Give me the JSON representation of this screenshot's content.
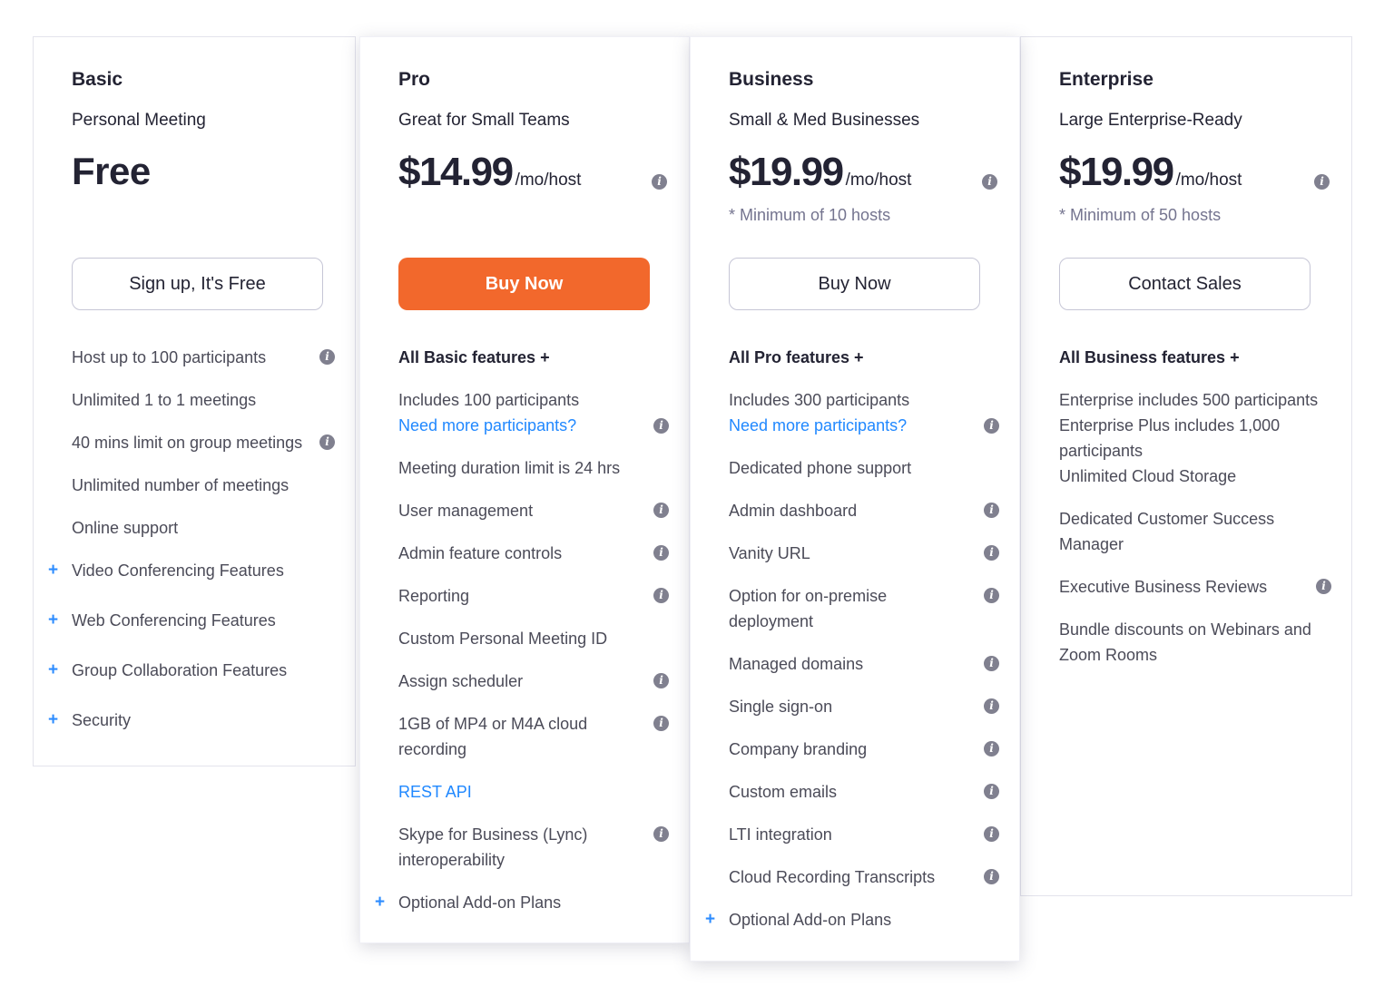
{
  "colors": {
    "accent_orange": "#F2682C",
    "link_blue": "#2088FF",
    "plus_blue": "#2D8CFF",
    "info_icon_gray": "#80808F",
    "heading_navy": "#232333",
    "note_gray": "#74748F"
  },
  "icons": {
    "info_glyph": "i",
    "plus_glyph": "+"
  },
  "plans": [
    {
      "name": "Basic",
      "tagline": "Personal Meeting",
      "price": {
        "display": "Free"
      },
      "button": {
        "label": "Sign up, It's Free",
        "style": "outline"
      },
      "features": [
        {
          "text": "Host up to 100 participants",
          "info": true
        },
        {
          "text": "Unlimited 1 to 1 meetings"
        },
        {
          "text": "40 mins limit on group meetings",
          "info": true
        },
        {
          "text": "Unlimited number of meetings"
        },
        {
          "text": "Online support"
        },
        {
          "text": "Video Conferencing Features",
          "expand": true
        },
        {
          "text": "Web Conferencing Features",
          "expand": true
        },
        {
          "text": "Group Collaboration Features",
          "expand": true
        },
        {
          "text": "Security",
          "expand": true
        }
      ]
    },
    {
      "name": "Pro",
      "tagline": "Great for Small Teams",
      "price": {
        "amount": "$14.99",
        "unit": "/mo/host",
        "info": true
      },
      "button": {
        "label": "Buy Now",
        "style": "solid"
      },
      "features": [
        {
          "text": "All Basic features +",
          "bold": true
        },
        {
          "text": "Includes 100 participants",
          "link": "Need more participants?",
          "info": true
        },
        {
          "text": "Meeting duration limit is 24 hrs"
        },
        {
          "text": "User management",
          "info": true
        },
        {
          "text": "Admin feature controls",
          "info": true
        },
        {
          "text": "Reporting",
          "info": true
        },
        {
          "text": "Custom Personal Meeting ID"
        },
        {
          "text": "Assign scheduler",
          "info": true
        },
        {
          "text": "1GB of MP4 or M4A cloud recording",
          "info": true
        },
        {
          "link": "REST API"
        },
        {
          "text": "Skype for Business (Lync) interoperability",
          "info": true
        },
        {
          "text": "Optional Add-on Plans",
          "expand": true
        }
      ]
    },
    {
      "name": "Business",
      "tagline": "Small & Med Businesses",
      "price": {
        "amount": "$19.99",
        "unit": "/mo/host",
        "info": true
      },
      "note": "* Minimum of 10 hosts",
      "button": {
        "label": "Buy Now",
        "style": "outline"
      },
      "features": [
        {
          "text": "All Pro features +",
          "bold": true
        },
        {
          "text": "Includes 300 participants",
          "link": "Need more participants?",
          "info": true
        },
        {
          "text": "Dedicated phone support"
        },
        {
          "text": "Admin dashboard",
          "info": true
        },
        {
          "text": "Vanity URL",
          "info": true
        },
        {
          "text": "Option for on-premise deployment",
          "info": true
        },
        {
          "text": "Managed domains",
          "info": true
        },
        {
          "text": "Single sign-on",
          "info": true
        },
        {
          "text": "Company branding",
          "info": true
        },
        {
          "text": "Custom emails",
          "info": true
        },
        {
          "text": "LTI integration",
          "info": true
        },
        {
          "text": "Cloud Recording Transcripts",
          "info": true
        },
        {
          "text": "Optional Add-on Plans",
          "expand": true
        }
      ]
    },
    {
      "name": "Enterprise",
      "tagline": "Large Enterprise-Ready",
      "price": {
        "amount": "$19.99",
        "unit": "/mo/host",
        "info": true
      },
      "note": "* Minimum of 50 hosts",
      "button": {
        "label": "Contact Sales",
        "style": "outline"
      },
      "features": [
        {
          "text": "All Business features +",
          "bold": true
        },
        {
          "lines": [
            "Enterprise includes 500 participants",
            "Enterprise Plus includes 1,000 participants",
            "Unlimited Cloud Storage"
          ]
        },
        {
          "text": "Dedicated Customer Success Manager"
        },
        {
          "text": "Executive Business Reviews",
          "info": true
        },
        {
          "text": "Bundle discounts on Webinars and Zoom Rooms"
        }
      ]
    }
  ]
}
